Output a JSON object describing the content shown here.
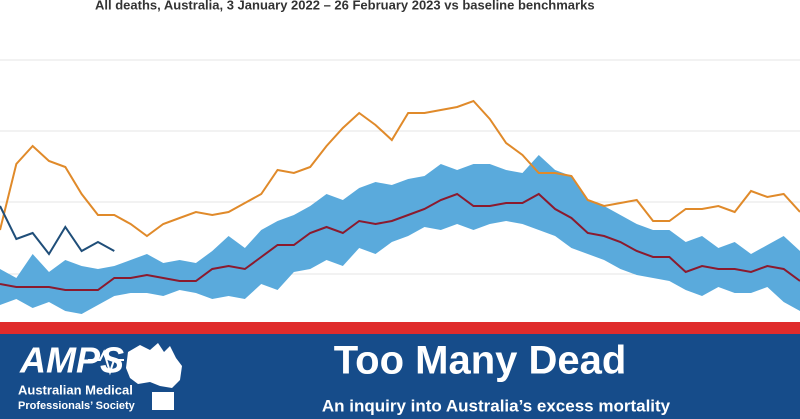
{
  "chart_data": {
    "type": "line",
    "title": "All deaths, Australia, 3 January 2022 – 26 February 2023 vs baseline benchmarks",
    "ylim": [
      0,
      100
    ],
    "band": {
      "color": "#5aaadc",
      "high": [
        17,
        14,
        22,
        16,
        20,
        18,
        17,
        18,
        20,
        22,
        19,
        20,
        19,
        23,
        28,
        24,
        30,
        33,
        35,
        38,
        42,
        40,
        44,
        46,
        45,
        47,
        48,
        52,
        50,
        52,
        52,
        50,
        49,
        55,
        50,
        48,
        40,
        38,
        35,
        32,
        30,
        30,
        26,
        28,
        24,
        26,
        22,
        25,
        28,
        23
      ],
      "low": [
        5,
        7,
        4,
        6,
        3,
        2,
        5,
        8,
        9,
        9,
        8,
        10,
        9,
        7,
        8,
        7,
        12,
        10,
        16,
        17,
        20,
        18,
        24,
        22,
        26,
        28,
        31,
        30,
        32,
        30,
        32,
        33,
        32,
        30,
        28,
        24,
        22,
        20,
        17,
        15,
        14,
        13,
        10,
        8,
        11,
        9,
        9,
        11,
        6,
        3
      ]
    },
    "series": [
      {
        "color": "#e08a2a",
        "values": [
          30,
          52,
          58,
          53,
          51,
          42,
          35,
          35,
          32,
          28,
          32,
          34,
          36,
          35,
          36,
          39,
          42,
          50,
          49,
          51,
          58,
          64,
          69,
          65,
          60,
          69,
          69,
          70,
          71,
          73,
          67,
          59,
          55,
          49,
          49,
          48,
          40,
          38,
          39,
          40,
          33,
          33,
          37,
          37,
          38,
          36,
          43,
          41,
          42,
          36
        ]
      },
      {
        "color": "#1f4e79",
        "values": [
          38,
          27,
          29,
          22,
          31,
          23,
          26,
          23,
          null,
          null,
          null,
          null,
          null,
          null,
          null,
          null,
          null,
          null,
          null,
          null,
          null,
          null,
          null,
          null,
          null,
          null,
          null,
          null,
          null,
          null,
          null,
          null,
          null,
          null,
          null,
          null,
          null,
          null,
          null,
          null,
          null,
          null,
          null,
          null,
          null,
          null,
          null,
          null,
          null,
          null
        ]
      },
      {
        "color": "#8b1a2e",
        "values": [
          12,
          11,
          11,
          11,
          10,
          10,
          10,
          14,
          14,
          15,
          14,
          13,
          13,
          17,
          18,
          17,
          21,
          25,
          25,
          29,
          31,
          29,
          33,
          32,
          33,
          35,
          37,
          40,
          42,
          38,
          38,
          39,
          39,
          42,
          37,
          34,
          29,
          28,
          26,
          23,
          21,
          21,
          16,
          18,
          17,
          17,
          16,
          18,
          17,
          13
        ]
      }
    ]
  },
  "banner": {
    "title": "Too Many Dead",
    "subtitle": "An inquiry into Australia’s excess mortality",
    "logo": {
      "acronym": "AMPS",
      "line1": "Australian Medical",
      "line2": "Professionals’ Society"
    }
  }
}
